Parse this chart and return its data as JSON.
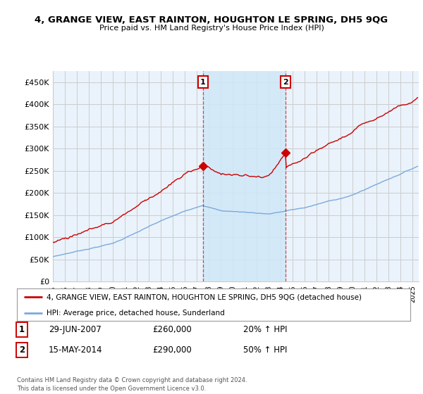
{
  "title": "4, GRANGE VIEW, EAST RAINTON, HOUGHTON LE SPRING, DH5 9QG",
  "subtitle": "Price paid vs. HM Land Registry's House Price Index (HPI)",
  "ylabel_ticks": [
    "£0",
    "£50K",
    "£100K",
    "£150K",
    "£200K",
    "£250K",
    "£300K",
    "£350K",
    "£400K",
    "£450K"
  ],
  "ytick_values": [
    0,
    50000,
    100000,
    150000,
    200000,
    250000,
    300000,
    350000,
    400000,
    450000
  ],
  "ylim": [
    0,
    475000
  ],
  "xlim_start": 1995.0,
  "xlim_end": 2025.5,
  "red_line_color": "#cc0000",
  "blue_line_color": "#7aaadd",
  "shade_color": "#d0e8f8",
  "grid_color": "#cccccc",
  "bg_color": "#ffffff",
  "plot_bg_color": "#eaf3fb",
  "marker1_date": 2007.49,
  "marker1_value": 260000,
  "marker2_date": 2014.37,
  "marker2_value": 290000,
  "vline1_x": 2007.49,
  "vline2_x": 2014.37,
  "legend_line1": "4, GRANGE VIEW, EAST RAINTON, HOUGHTON LE SPRING, DH5 9QG (detached house)",
  "legend_line2": "HPI: Average price, detached house, Sunderland",
  "annotation1_num": "1",
  "annotation1_date": "29-JUN-2007",
  "annotation1_price": "£260,000",
  "annotation1_hpi": "20% ↑ HPI",
  "annotation2_num": "2",
  "annotation2_date": "15-MAY-2014",
  "annotation2_price": "£290,000",
  "annotation2_hpi": "50% ↑ HPI",
  "footer": "Contains HM Land Registry data © Crown copyright and database right 2024.\nThis data is licensed under the Open Government Licence v3.0.",
  "xticks": [
    1995,
    1996,
    1997,
    1998,
    1999,
    2000,
    2001,
    2002,
    2003,
    2004,
    2005,
    2006,
    2007,
    2008,
    2009,
    2010,
    2011,
    2012,
    2013,
    2014,
    2015,
    2016,
    2017,
    2018,
    2019,
    2020,
    2021,
    2022,
    2023,
    2024,
    2025
  ]
}
